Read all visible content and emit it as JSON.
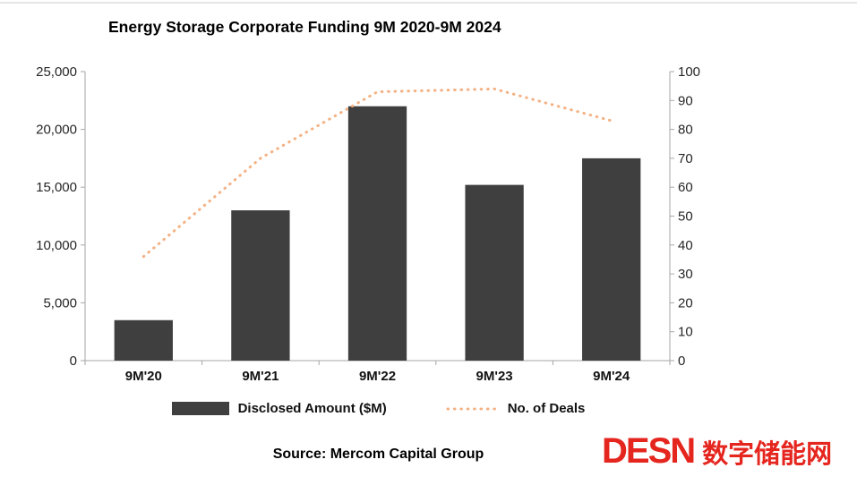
{
  "chart_data": {
    "type": "bar",
    "title": "Energy Storage Corporate Funding 9M 2020-9M 2024",
    "categories": [
      "9M'20",
      "9M'21",
      "9M'22",
      "9M'23",
      "9M'24"
    ],
    "series": [
      {
        "name": "Disclosed Amount ($M)",
        "type": "bar",
        "axis": "left",
        "color": "#3f3f3f",
        "values": [
          3500,
          13000,
          22000,
          15200,
          17500
        ]
      },
      {
        "name": "No. of Deals",
        "type": "line",
        "line_style": "dotted",
        "axis": "right",
        "color": "#f4b183",
        "values": [
          36,
          70,
          93,
          94,
          83
        ]
      }
    ],
    "left_axis": {
      "min": 0,
      "max": 25000,
      "step": 5000,
      "tick_labels": [
        "0",
        "5,000",
        "10,000",
        "15,000",
        "20,000",
        "25,000"
      ]
    },
    "right_axis": {
      "min": 0,
      "max": 100,
      "step": 10,
      "tick_labels": [
        "0",
        "10",
        "20",
        "30",
        "40",
        "50",
        "60",
        "70",
        "80",
        "90",
        "100"
      ]
    },
    "grid": false,
    "legend_position": "bottom",
    "axis_color": "#a6a6a6"
  },
  "source": "Source: Mercom Capital Group",
  "logo": {
    "wordmark": "DESN",
    "chinese_name": "数字储能网",
    "color": "#e5261f"
  }
}
